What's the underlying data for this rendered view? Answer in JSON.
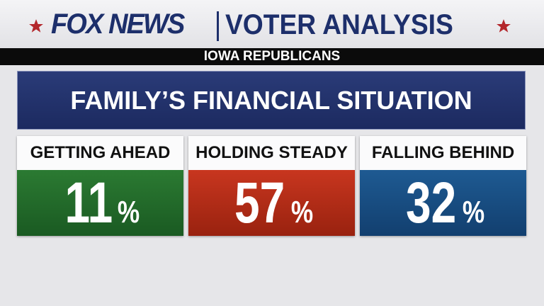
{
  "header": {
    "brand": "FOX NEWS",
    "title": "VOTER ANALYSIS"
  },
  "subtitle": "IOWA REPUBLICANS",
  "panel": {
    "title": "FAMILY’S FINANCIAL SITUATION",
    "cards": [
      {
        "label": "GETTING AHEAD",
        "value": 11,
        "unit": "%"
      },
      {
        "label": "HOLDING STEADY",
        "value": 57,
        "unit": "%"
      },
      {
        "label": "FALLING BEHIND",
        "value": 32,
        "unit": "%"
      }
    ]
  }
}
